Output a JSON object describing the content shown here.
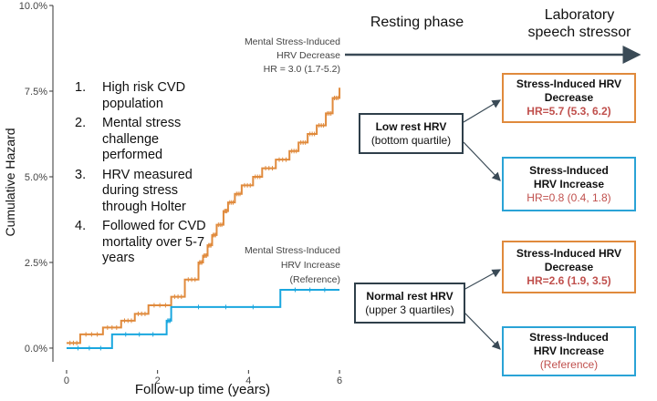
{
  "chart_data": {
    "type": "line",
    "title": "",
    "xlabel": "Follow-up time (years)",
    "ylabel": "Cumulative Hazard",
    "xlim": [
      -0.3,
      6.3
    ],
    "ylim": [
      -0.4,
      10.0
    ],
    "xticks": [
      0,
      2,
      4,
      6
    ],
    "xtick_labels": [
      "0",
      "2",
      "4",
      "6"
    ],
    "yticks": [
      0,
      2.5,
      5.0,
      7.5,
      10.0
    ],
    "ytick_labels": [
      "0.0%",
      "2.5%",
      "5.0%",
      "7.5%",
      "10.0%"
    ],
    "grid": false,
    "series": [
      {
        "name": "Mental Stress-Induced HRV Decrease",
        "color": "#e08a3c",
        "step": true,
        "x": [
          0,
          0.3,
          0.8,
          1.2,
          1.5,
          1.8,
          2.3,
          2.6,
          2.9,
          3.0,
          3.1,
          3.2,
          3.3,
          3.45,
          3.55,
          3.7,
          3.85,
          4.1,
          4.3,
          4.6,
          4.9,
          5.1,
          5.3,
          5.5,
          5.7,
          5.85,
          6.0
        ],
        "y": [
          0.15,
          0.4,
          0.6,
          0.8,
          1.0,
          1.25,
          1.5,
          2.0,
          2.5,
          2.7,
          3.0,
          3.3,
          3.6,
          4.0,
          4.25,
          4.5,
          4.75,
          5.0,
          5.25,
          5.5,
          5.75,
          6.0,
          6.25,
          6.5,
          6.85,
          7.3,
          7.6
        ]
      },
      {
        "name": "Mental Stress-Induced HRV Increase (Reference)",
        "color": "#1aa7df",
        "step": true,
        "x": [
          0,
          1.0,
          2.2,
          2.3,
          4.7,
          6.0
        ],
        "y": [
          0,
          0.4,
          0.8,
          1.2,
          1.7,
          1.7
        ]
      }
    ],
    "annotations": [
      {
        "lines": [
          "Mental Stress-Induced",
          "HRV Decrease",
          "HR = 3.0 (1.7-5.2)"
        ]
      },
      {
        "lines": [
          "Mental Stress-Induced",
          "HRV Increase",
          "(Reference)"
        ]
      }
    ]
  },
  "list_items": [
    {
      "num": "1.",
      "text": "High risk CVD population"
    },
    {
      "num": "2.",
      "text": "Mental stress challenge performed"
    },
    {
      "num": "3.",
      "text": "HRV measured during stress through Holter"
    },
    {
      "num": "4.",
      "text": "Followed for CVD mortality over 5-7 years"
    }
  ],
  "phases": {
    "resting": "Resting phase",
    "lab_line1": "Laboratory",
    "lab_line2": "speech stressor"
  },
  "boxes": {
    "low_rest": {
      "title": "Low rest HRV",
      "sub": "(bottom quartile)"
    },
    "normal_rest": {
      "title": "Normal rest HRV",
      "sub": "(upper 3 quartiles)"
    },
    "low_decrease": {
      "l1": "Stress-Induced HRV",
      "l2": "Decrease",
      "hr": "HR=5.7 (5.3, 6.2)"
    },
    "low_increase": {
      "l1": "Stress-Induced",
      "l2": "HRV Increase",
      "hr": "HR=0.8 (0.4, 1.8)"
    },
    "normal_decrease": {
      "l1": "Stress-Induced HRV",
      "l2": "Decrease",
      "hr": "HR=2.6 (1.9, 3.5)"
    },
    "normal_increase": {
      "l1": "Stress-Induced",
      "l2": "HRV Increase",
      "hr": "(Reference)"
    }
  },
  "colors": {
    "orange": "#e08a3c",
    "blue": "#1aa7df",
    "red_text": "#c0504d",
    "arrow": "#3a4a56"
  }
}
